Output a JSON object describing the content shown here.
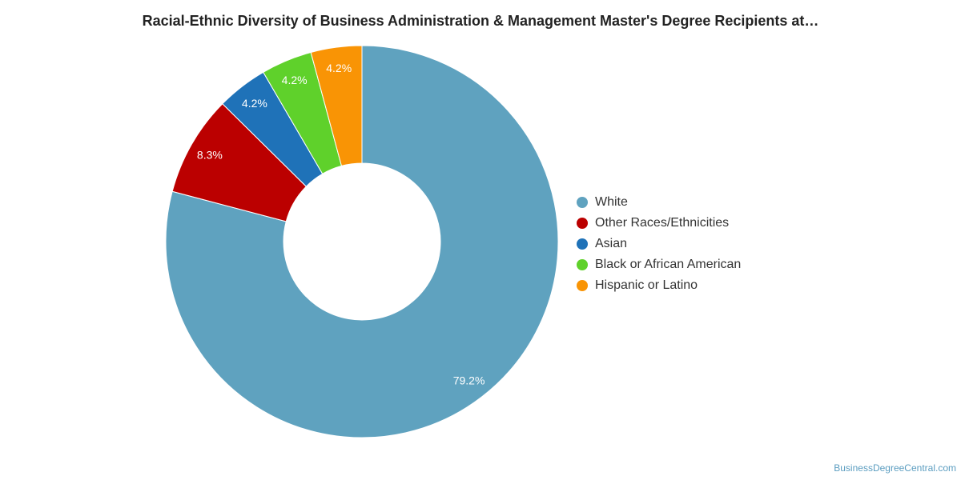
{
  "header": {
    "title": "Racial-Ethnic Diversity of Business Administration & Management Master's Degree Recipients at…"
  },
  "footer": {
    "source": "BusinessDegreeCentral.com"
  },
  "chart_data": {
    "type": "pie",
    "variant": "donut",
    "title": "Racial-Ethnic Diversity of Business Administration & Management Master's Degree Recipients at…",
    "legend_position": "right",
    "categories": [
      "White",
      "Other Races/Ethnicities",
      "Asian",
      "Black or African American",
      "Hispanic or Latino"
    ],
    "values": [
      79.2,
      8.3,
      4.2,
      4.2,
      4.2
    ],
    "labels": [
      "79.2%",
      "8.3%",
      "4.2%",
      "4.2%",
      "4.2%"
    ],
    "colors": [
      "#5fa2bf",
      "#bb0000",
      "#1f72b8",
      "#5fd12b",
      "#f99405"
    ]
  }
}
